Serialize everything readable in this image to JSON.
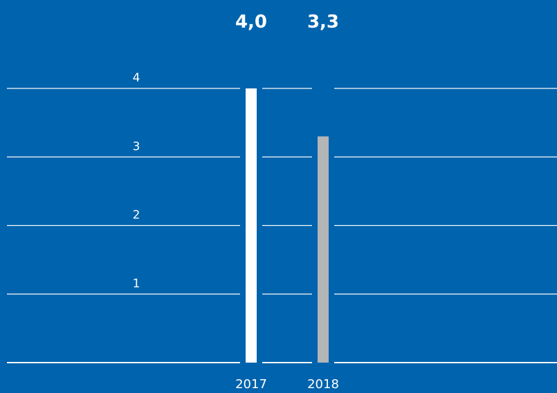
{
  "colors": {
    "background": "#0063ad",
    "gridline": "#ffffff",
    "text": "#ffffff",
    "bar_2017": "#ffffff",
    "bar_2018": "#b3b5b7"
  },
  "chart_data": {
    "type": "bar",
    "categories": [
      "2017",
      "2018"
    ],
    "values": [
      4.0,
      3.3
    ],
    "value_labels": [
      "4,0",
      "3,3"
    ],
    "yticks": [
      "1",
      "2",
      "3",
      "4"
    ],
    "ylim": [
      0,
      4
    ],
    "grid": true,
    "legend": "none",
    "title": "",
    "xlabel": "",
    "ylabel": ""
  }
}
